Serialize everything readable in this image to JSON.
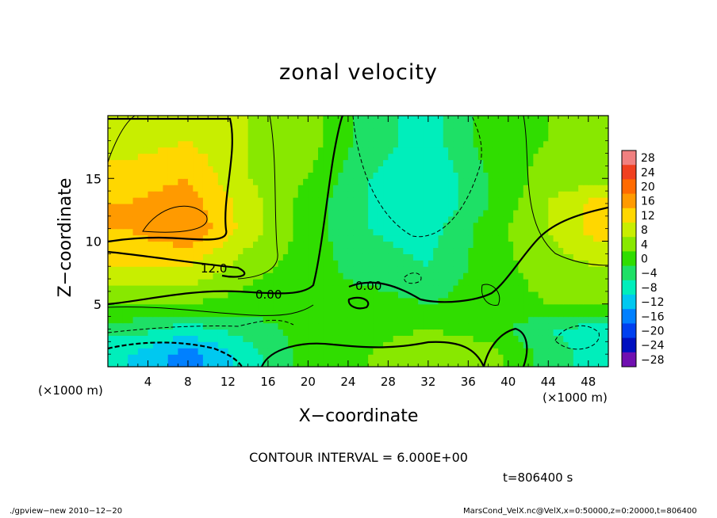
{
  "chart_data": {
    "type": "heatmap",
    "title": "zonal velocity",
    "xlabel": "X−coordinate",
    "ylabel": "Z−coordinate",
    "x_unit_left": "(×1000 m)",
    "x_unit_right": "(×1000 m)",
    "xlim": [
      0,
      50
    ],
    "ylim": [
      0,
      20
    ],
    "x_ticks": [
      4,
      8,
      12,
      16,
      20,
      24,
      28,
      32,
      36,
      40,
      44,
      48
    ],
    "y_ticks": [
      5,
      10,
      15
    ],
    "colorbar_levels": [
      28,
      24,
      20,
      16,
      12,
      8,
      4,
      0,
      -4,
      -8,
      -12,
      -16,
      -20,
      -24,
      -28
    ],
    "colorbar_labels": [
      "28",
      "24",
      "20",
      "16",
      "12",
      "8",
      "4",
      "0",
      "−4",
      "−8",
      "−12",
      "−16",
      "−20",
      "−24",
      "−28"
    ],
    "contour_labels": [
      "12.0",
      "0.00",
      "0.00"
    ],
    "contour_interval": "CONTOUR INTERVAL = 6.000E+00",
    "time": "t=806400 s",
    "footer_left": "./gpview−new  2010−12−20",
    "footer_right": "MarsCond_VelX.nc@VelX,x=0:50000,z=0:20000,t=806400",
    "field_samples": {
      "x": [
        2,
        8,
        14,
        20,
        26,
        32,
        38,
        44,
        49
      ],
      "z": [
        1,
        3,
        5,
        8,
        11,
        13,
        15,
        18
      ],
      "values": [
        [
          -8,
          -14,
          -6,
          2,
          4,
          8,
          6,
          -2,
          -6
        ],
        [
          -2,
          -6,
          -2,
          2,
          2,
          4,
          2,
          -4,
          -6
        ],
        [
          4,
          4,
          2,
          0,
          2,
          0,
          2,
          4,
          4
        ],
        [
          12,
          12,
          6,
          2,
          -2,
          -4,
          2,
          6,
          8
        ],
        [
          16,
          20,
          10,
          2,
          -4,
          -6,
          2,
          8,
          14
        ],
        [
          16,
          18,
          10,
          2,
          -4,
          -8,
          0,
          8,
          14
        ],
        [
          14,
          16,
          8,
          4,
          -4,
          -8,
          0,
          6,
          6
        ],
        [
          10,
          12,
          8,
          6,
          -2,
          -6,
          2,
          4,
          4
        ]
      ]
    }
  }
}
